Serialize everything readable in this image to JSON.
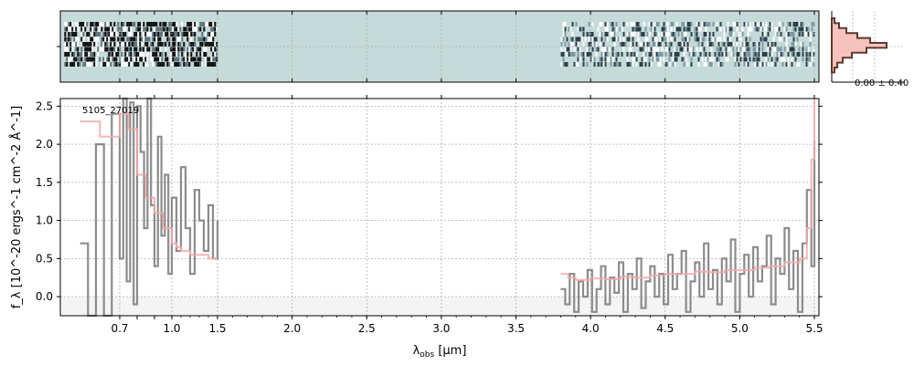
{
  "chart_data": {
    "type": "line",
    "object_label": "5105_27019",
    "xlabel_main": "λ",
    "xlabel_sub": "obs",
    "xlabel_unit": " [μm]",
    "ylabel": "f_λ [10^-20 ergs^-1 cm^-2 Å^-1]",
    "xticks": [
      "0.7",
      "0.8",
      "0.9",
      "1.0",
      "1.5",
      "2.0",
      "2.5",
      "3.0",
      "3.5",
      "4.0",
      "4.5",
      "5.0",
      "5.5"
    ],
    "xtick_labels": [
      "0.7",
      "1.0",
      "1.5",
      "2.0",
      "2.5",
      "3.0",
      "3.5",
      "4.0",
      "4.5",
      "5.0",
      "5.5"
    ],
    "ylim": [
      -0.25,
      2.6
    ],
    "yticks": [
      "0.0",
      "0.5",
      "1.0",
      "1.5",
      "2.0",
      "2.5"
    ],
    "grid": true,
    "hist_label": "0.00 ± 0.40",
    "colors": {
      "flux": "#8c8c8c",
      "model": "#f4a8a8",
      "panel_2d": "#c5dbd9",
      "hist_fill": "#f7c2bd",
      "hist_line": "#5a3b2e"
    },
    "series": [
      {
        "key": "flux",
        "x": [
          0.6,
          0.62,
          0.64,
          0.66,
          0.68,
          0.7,
          0.72,
          0.74,
          0.76,
          0.78,
          0.8,
          0.82,
          0.84,
          0.86,
          0.88,
          0.9,
          0.92,
          0.94,
          0.96,
          0.98,
          1.0,
          1.05,
          1.1,
          1.15,
          1.2,
          1.25,
          1.3,
          1.35,
          1.4,
          1.45,
          1.5
        ],
        "y": [
          0.7,
          -0.25,
          2.0,
          -0.25,
          2.4,
          0.5,
          2.6,
          0.2,
          2.55,
          -0.1,
          2.5,
          1.9,
          0.9,
          2.6,
          1.2,
          0.4,
          2.1,
          0.8,
          1.6,
          0.3,
          1.3,
          0.6,
          1.7,
          0.9,
          0.3,
          1.4,
          1.0,
          0.6,
          1.2,
          0.5,
          1.0
        ]
      },
      {
        "key": "flux",
        "x": [
          3.8,
          3.83,
          3.86,
          3.89,
          3.92,
          3.95,
          3.98,
          4.01,
          4.04,
          4.07,
          4.1,
          4.13,
          4.16,
          4.19,
          4.22,
          4.25,
          4.28,
          4.31,
          4.34,
          4.37,
          4.4,
          4.43,
          4.46,
          4.49,
          4.52,
          4.55,
          4.58,
          4.61,
          4.64,
          4.67,
          4.7,
          4.73,
          4.76,
          4.79,
          4.82,
          4.85,
          4.88,
          4.91,
          4.94,
          4.97,
          5.0,
          5.03,
          5.06,
          5.09,
          5.12,
          5.15,
          5.18,
          5.21,
          5.24,
          5.27,
          5.3,
          5.33,
          5.36,
          5.39,
          5.42,
          5.45,
          5.48,
          5.5
        ],
        "y": [
          0.1,
          -0.1,
          0.3,
          -0.2,
          0.2,
          0.0,
          0.35,
          -0.2,
          0.1,
          0.4,
          -0.1,
          0.25,
          0.05,
          0.45,
          -0.2,
          0.3,
          0.1,
          0.5,
          -0.15,
          0.2,
          0.4,
          0.0,
          0.3,
          -0.1,
          0.55,
          0.1,
          0.3,
          0.6,
          -0.2,
          0.2,
          0.45,
          0.0,
          0.7,
          0.1,
          0.35,
          -0.1,
          0.5,
          0.2,
          0.75,
          -0.2,
          0.3,
          0.55,
          0.0,
          0.65,
          0.2,
          0.4,
          0.8,
          -0.1,
          0.5,
          0.3,
          0.9,
          0.1,
          0.6,
          -0.2,
          0.7,
          1.4,
          0.4,
          2.05
        ]
      },
      {
        "key": "model",
        "x": [
          0.6,
          0.65,
          0.7,
          0.75,
          0.8,
          0.85,
          0.9,
          0.95,
          1.0,
          1.05,
          1.1,
          1.2,
          1.3,
          1.4,
          1.5
        ],
        "y": [
          2.3,
          2.1,
          2.4,
          2.2,
          1.6,
          1.3,
          1.1,
          0.9,
          0.7,
          0.65,
          0.6,
          0.55,
          0.55,
          0.5,
          0.5
        ]
      },
      {
        "key": "model",
        "x": [
          3.8,
          3.85,
          3.9,
          4.0,
          4.1,
          4.2,
          4.3,
          4.4,
          4.5,
          4.6,
          4.7,
          4.8,
          4.9,
          5.0,
          5.1,
          5.2,
          5.3,
          5.4,
          5.45,
          5.48,
          5.5
        ],
        "y": [
          0.3,
          0.25,
          0.22,
          0.24,
          0.23,
          0.26,
          0.25,
          0.28,
          0.3,
          0.3,
          0.33,
          0.32,
          0.35,
          0.35,
          0.38,
          0.4,
          0.45,
          0.5,
          0.9,
          1.8,
          2.6
        ]
      }
    ]
  }
}
